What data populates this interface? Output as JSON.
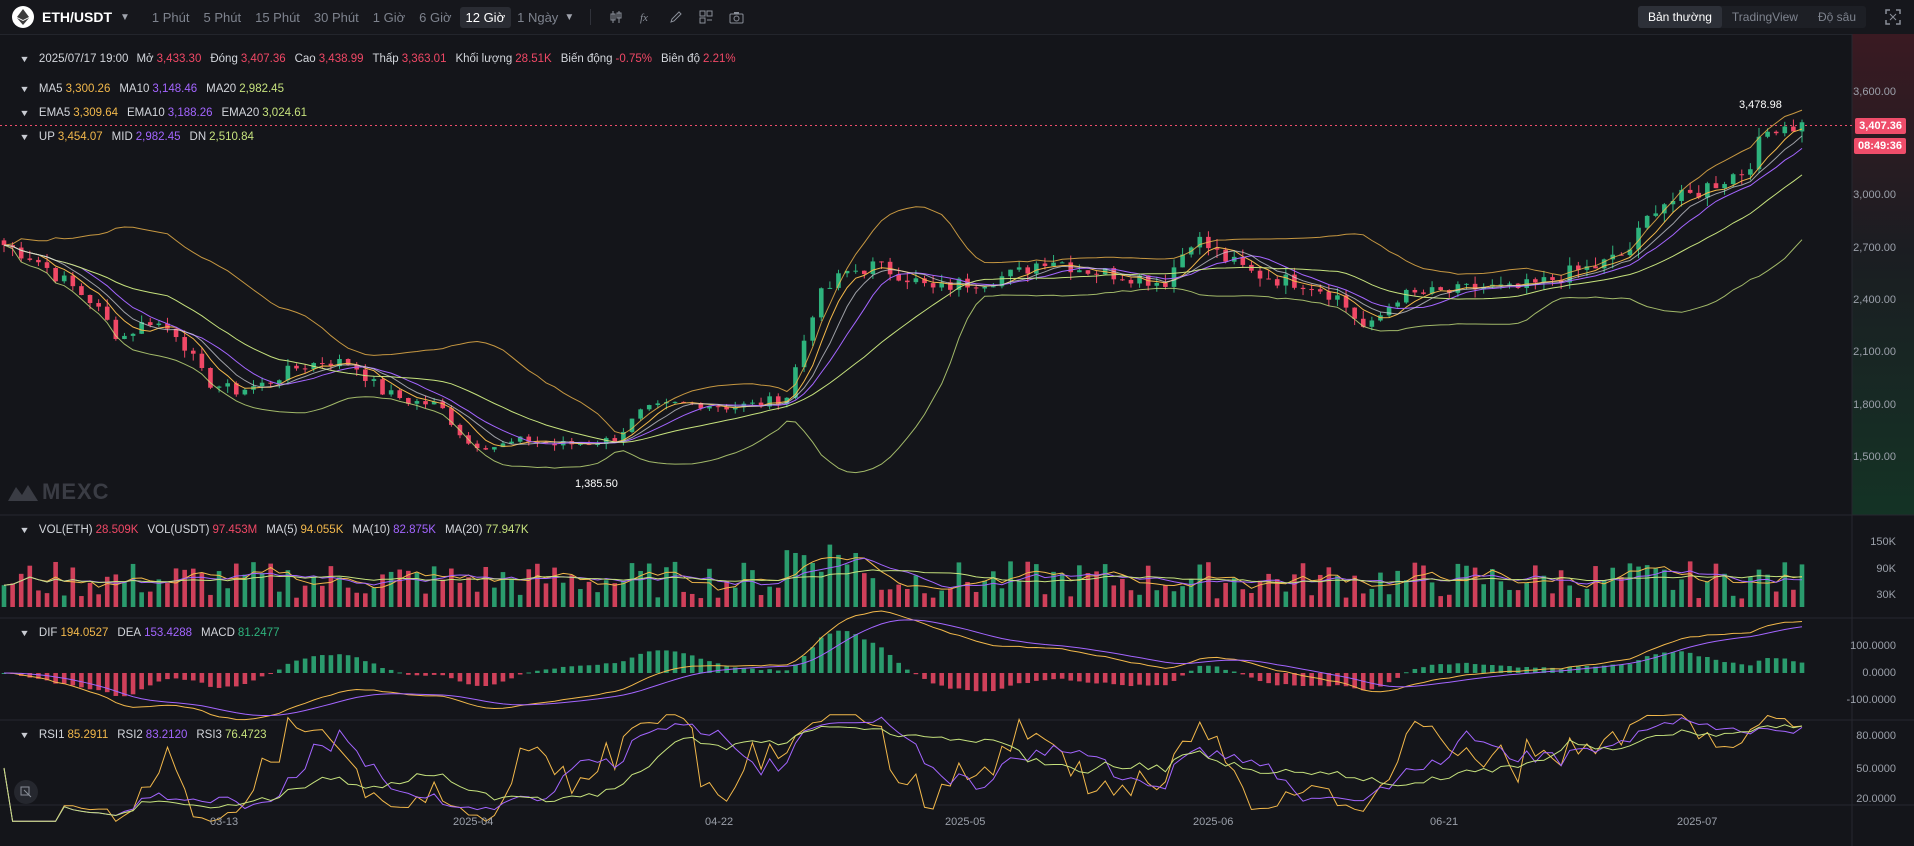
{
  "pair": {
    "symbol": "ETH/USDT"
  },
  "intervals": [
    "1 Phút",
    "5 Phút",
    "15 Phút",
    "30 Phút",
    "1 Giờ",
    "6 Giờ",
    "12 Giờ"
  ],
  "interval_active": "12 Giờ",
  "interval_dropdown": "1 Ngày",
  "view_tabs": [
    "Bản thường",
    "TradingView",
    "Độ sâu"
  ],
  "view_active": "Bản thường",
  "ohlc": {
    "date": "2025/07/17 19:00",
    "open_label": "Mở",
    "open": "3,433.30",
    "close_label": "Đóng",
    "close": "3,407.36",
    "high_label": "Cao",
    "high": "3,438.99",
    "low_label": "Thấp",
    "low": "3,363.01",
    "volume_label": "Khối lượng",
    "volume": "28.51K",
    "change_label": "Biến động",
    "change": "-0.75%",
    "amplitude_label": "Biên độ",
    "amplitude": "2.21%"
  },
  "ma": {
    "ma5_label": "MA5",
    "ma5": "3,300.26",
    "ma10_label": "MA10",
    "ma10": "3,148.46",
    "ma20_label": "MA20",
    "ma20": "2,982.45"
  },
  "ema": {
    "ema5_label": "EMA5",
    "ema5": "3,309.64",
    "ema10_label": "EMA10",
    "ema10": "3,188.26",
    "ema20_label": "EMA20",
    "ema20": "3,024.61"
  },
  "boll": {
    "up_label": "UP",
    "up": "3,454.07",
    "mid_label": "MID",
    "mid": "2,982.45",
    "dn_label": "DN",
    "dn": "2,510.84"
  },
  "vol": {
    "eth_label": "VOL(ETH)",
    "eth": "28.509K",
    "usdt_label": "VOL(USDT)",
    "usdt": "97.453M",
    "ma5_label": "MA(5)",
    "ma5": "94.055K",
    "ma10_label": "MA(10)",
    "ma10": "82.875K",
    "ma20_label": "MA(20)",
    "ma20": "77.947K"
  },
  "macd": {
    "dif_label": "DIF",
    "dif": "194.0527",
    "dea_label": "DEA",
    "dea": "153.4288",
    "macd_label": "MACD",
    "macd": "81.2477"
  },
  "rsi": {
    "rsi1_label": "RSI1",
    "rsi1": "85.2911",
    "rsi2_label": "RSI2",
    "rsi2": "83.2120",
    "rsi3_label": "RSI3",
    "rsi3": "76.4723"
  },
  "price_axis": [
    "3,600.00",
    "3,000.00",
    "2,700.00",
    "2,400.00",
    "2,100.00",
    "1,800.00",
    "1,500.00"
  ],
  "vol_axis": [
    "150K",
    "90K",
    "30K"
  ],
  "macd_axis": [
    "100.0000",
    "0.0000",
    "-100.0000"
  ],
  "rsi_axis": [
    "80.0000",
    "50.0000",
    "20.0000"
  ],
  "date_axis": [
    "03-13",
    "2025-04",
    "04-22",
    "2025-05",
    "2025-06",
    "06-21",
    "2025-07"
  ],
  "last_price": "3,407.36",
  "countdown": "08:49:36",
  "high_marker": "3,478.98",
  "low_marker": "1,385.50",
  "watermark": "MEXC",
  "colors": {
    "up": "#2eb37d",
    "down": "#f04866",
    "ma5": "#f2b84b",
    "ma10": "#a365ff",
    "ma20": "#c6e27d",
    "badge": "#ef4d6a"
  },
  "chart_data": {
    "type": "candlestick",
    "symbol": "ETH/USDT",
    "interval": "12 Giờ",
    "price_range": [
      1385.5,
      3700
    ],
    "approx_closes": [
      2720,
      2650,
      2520,
      2400,
      2180,
      2290,
      2210,
      1930,
      1880,
      1920,
      2010,
      2050,
      2040,
      1880,
      1820,
      1800,
      1580,
      1560,
      1600,
      1570,
      1580,
      1600,
      1760,
      1800,
      1810,
      1790,
      1800,
      1850,
      2400,
      2560,
      2600,
      2550,
      2460,
      2500,
      2520,
      2560,
      2650,
      2590,
      2560,
      2540,
      2500,
      2770,
      2650,
      2560,
      2520,
      2500,
      2420,
      2220,
      2420,
      2440,
      2450,
      2480,
      2460,
      2500,
      2560,
      2600,
      2680,
      2960,
      2990,
      3080,
      3150,
      3420,
      3407
    ]
  }
}
